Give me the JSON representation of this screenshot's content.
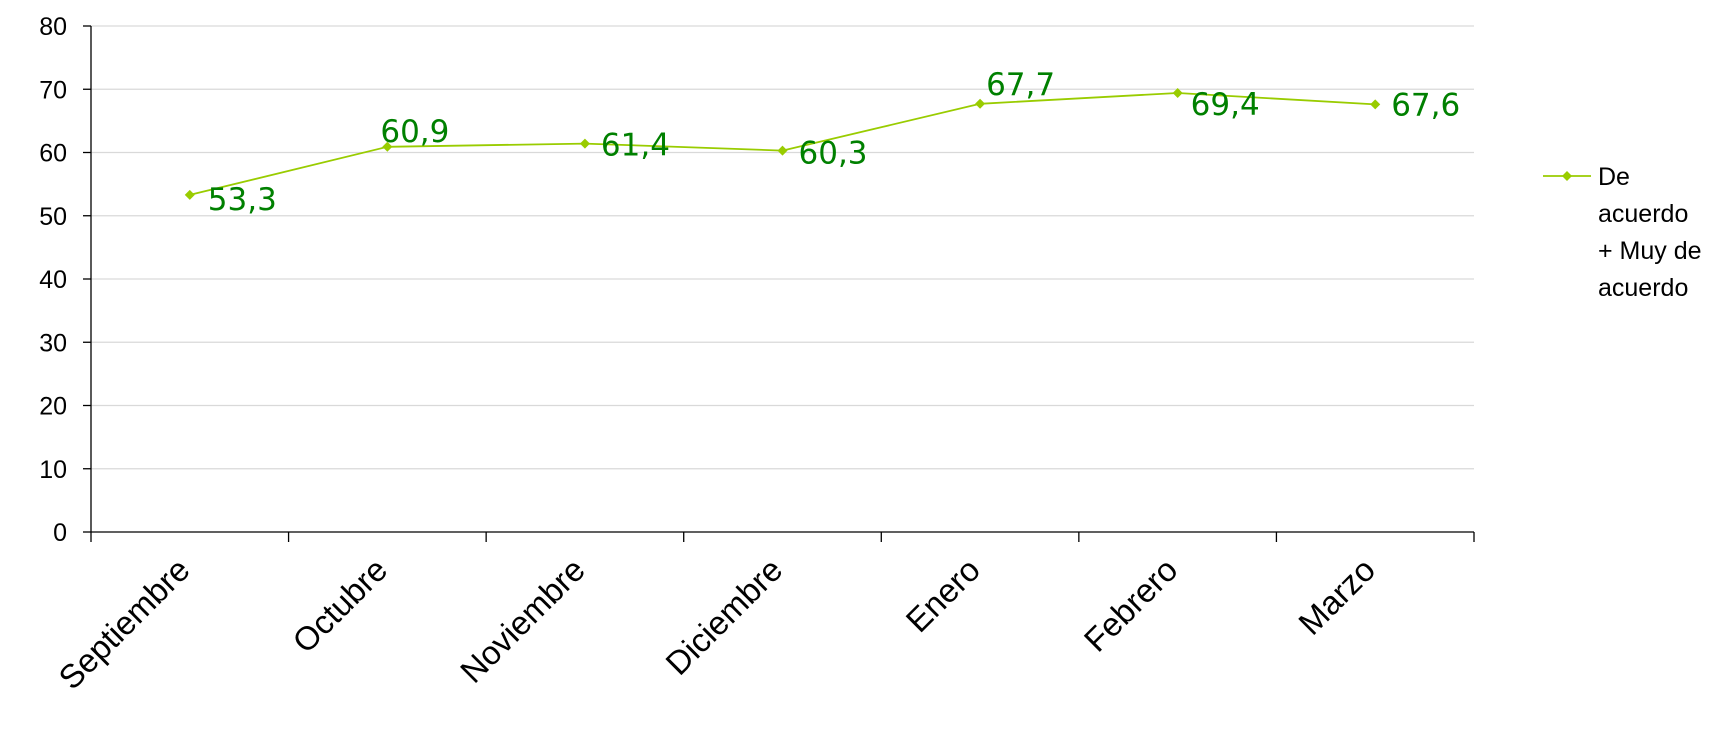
{
  "chart_data": {
    "type": "line",
    "title": "",
    "xlabel": "",
    "ylabel": "",
    "categories": [
      "Septiembre",
      "Octubre",
      "Noviembre",
      "Diciembre",
      "Enero",
      "Febrero",
      "Marzo"
    ],
    "series": [
      {
        "name": "De acuerdo + Muy de acuerdo",
        "values": [
          53.3,
          60.9,
          61.4,
          60.3,
          67.7,
          69.4,
          67.6
        ],
        "data_labels": [
          "53,3",
          "60,9",
          "61,4",
          "60,3",
          "67,7",
          "69,4",
          "67,6"
        ]
      }
    ],
    "ylim": [
      0,
      80
    ],
    "yticks": [
      0,
      10,
      20,
      30,
      40,
      50,
      60,
      70,
      80
    ],
    "grid": true,
    "legend_position": "right",
    "legend_lines": [
      "De",
      "acuerdo",
      "+ Muy de",
      "acuerdo"
    ],
    "colors": {
      "line": "#99CC00",
      "label": "#008000",
      "grid": "#D9D9D9",
      "axis": "#000000"
    }
  }
}
